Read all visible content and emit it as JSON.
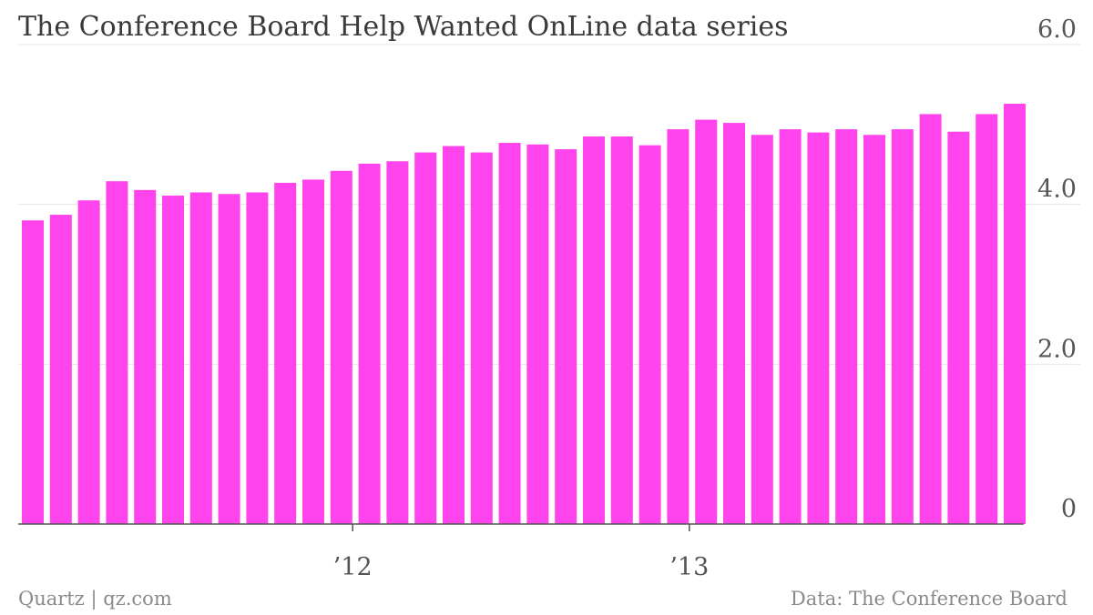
{
  "chart_data": {
    "type": "bar",
    "title": "The Conference Board Help Wanted OnLine data series",
    "xlabel": "",
    "ylabel": "",
    "ylim": [
      0,
      6
    ],
    "yticks": [
      {
        "value": 0,
        "label": "0"
      },
      {
        "value": 2,
        "label": "2.0"
      },
      {
        "value": 4,
        "label": "4.0"
      },
      {
        "value": 6,
        "label": "6.0"
      }
    ],
    "xticks": [
      {
        "index": 11.5,
        "label": "’12"
      },
      {
        "index": 23.5,
        "label": "’13"
      }
    ],
    "grid": true,
    "legend": "none",
    "color": "#ff44ee",
    "series": [
      {
        "values": [
          3.8,
          3.87,
          4.05,
          4.29,
          4.18,
          4.11,
          4.15,
          4.13,
          4.15,
          4.27,
          4.31,
          4.42,
          4.51,
          4.54,
          4.65,
          4.73,
          4.65,
          4.77,
          4.75,
          4.69,
          4.85,
          4.85,
          4.74,
          4.94,
          5.06,
          5.02,
          4.87,
          4.94,
          4.9,
          4.94,
          4.87,
          4.94,
          5.13,
          4.91,
          5.13,
          5.26
        ]
      }
    ]
  },
  "footer": {
    "left": "Quartz | qz.com",
    "right": "Data: The Conference Board"
  }
}
